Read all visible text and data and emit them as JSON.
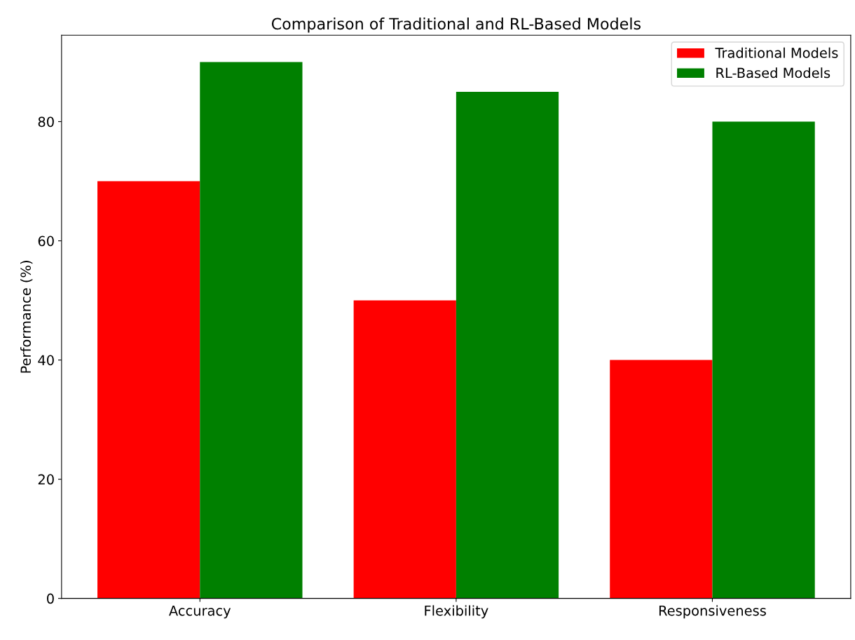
{
  "chart_data": {
    "type": "bar",
    "title": "Comparison of Traditional and RL-Based Models",
    "ylabel": "Performance (%)",
    "categories": [
      "Accuracy",
      "Flexibility",
      "Responsiveness"
    ],
    "series": [
      {
        "name": "Traditional Models",
        "color": "#ff0000",
        "values": [
          70,
          50,
          40
        ]
      },
      {
        "name": "RL-Based Models",
        "color": "#008000",
        "values": [
          90,
          85,
          80
        ]
      }
    ],
    "ylim": [
      0,
      94.5
    ],
    "yticks": [
      0,
      20,
      40,
      60,
      80
    ],
    "grid": false,
    "legend": "top right"
  }
}
